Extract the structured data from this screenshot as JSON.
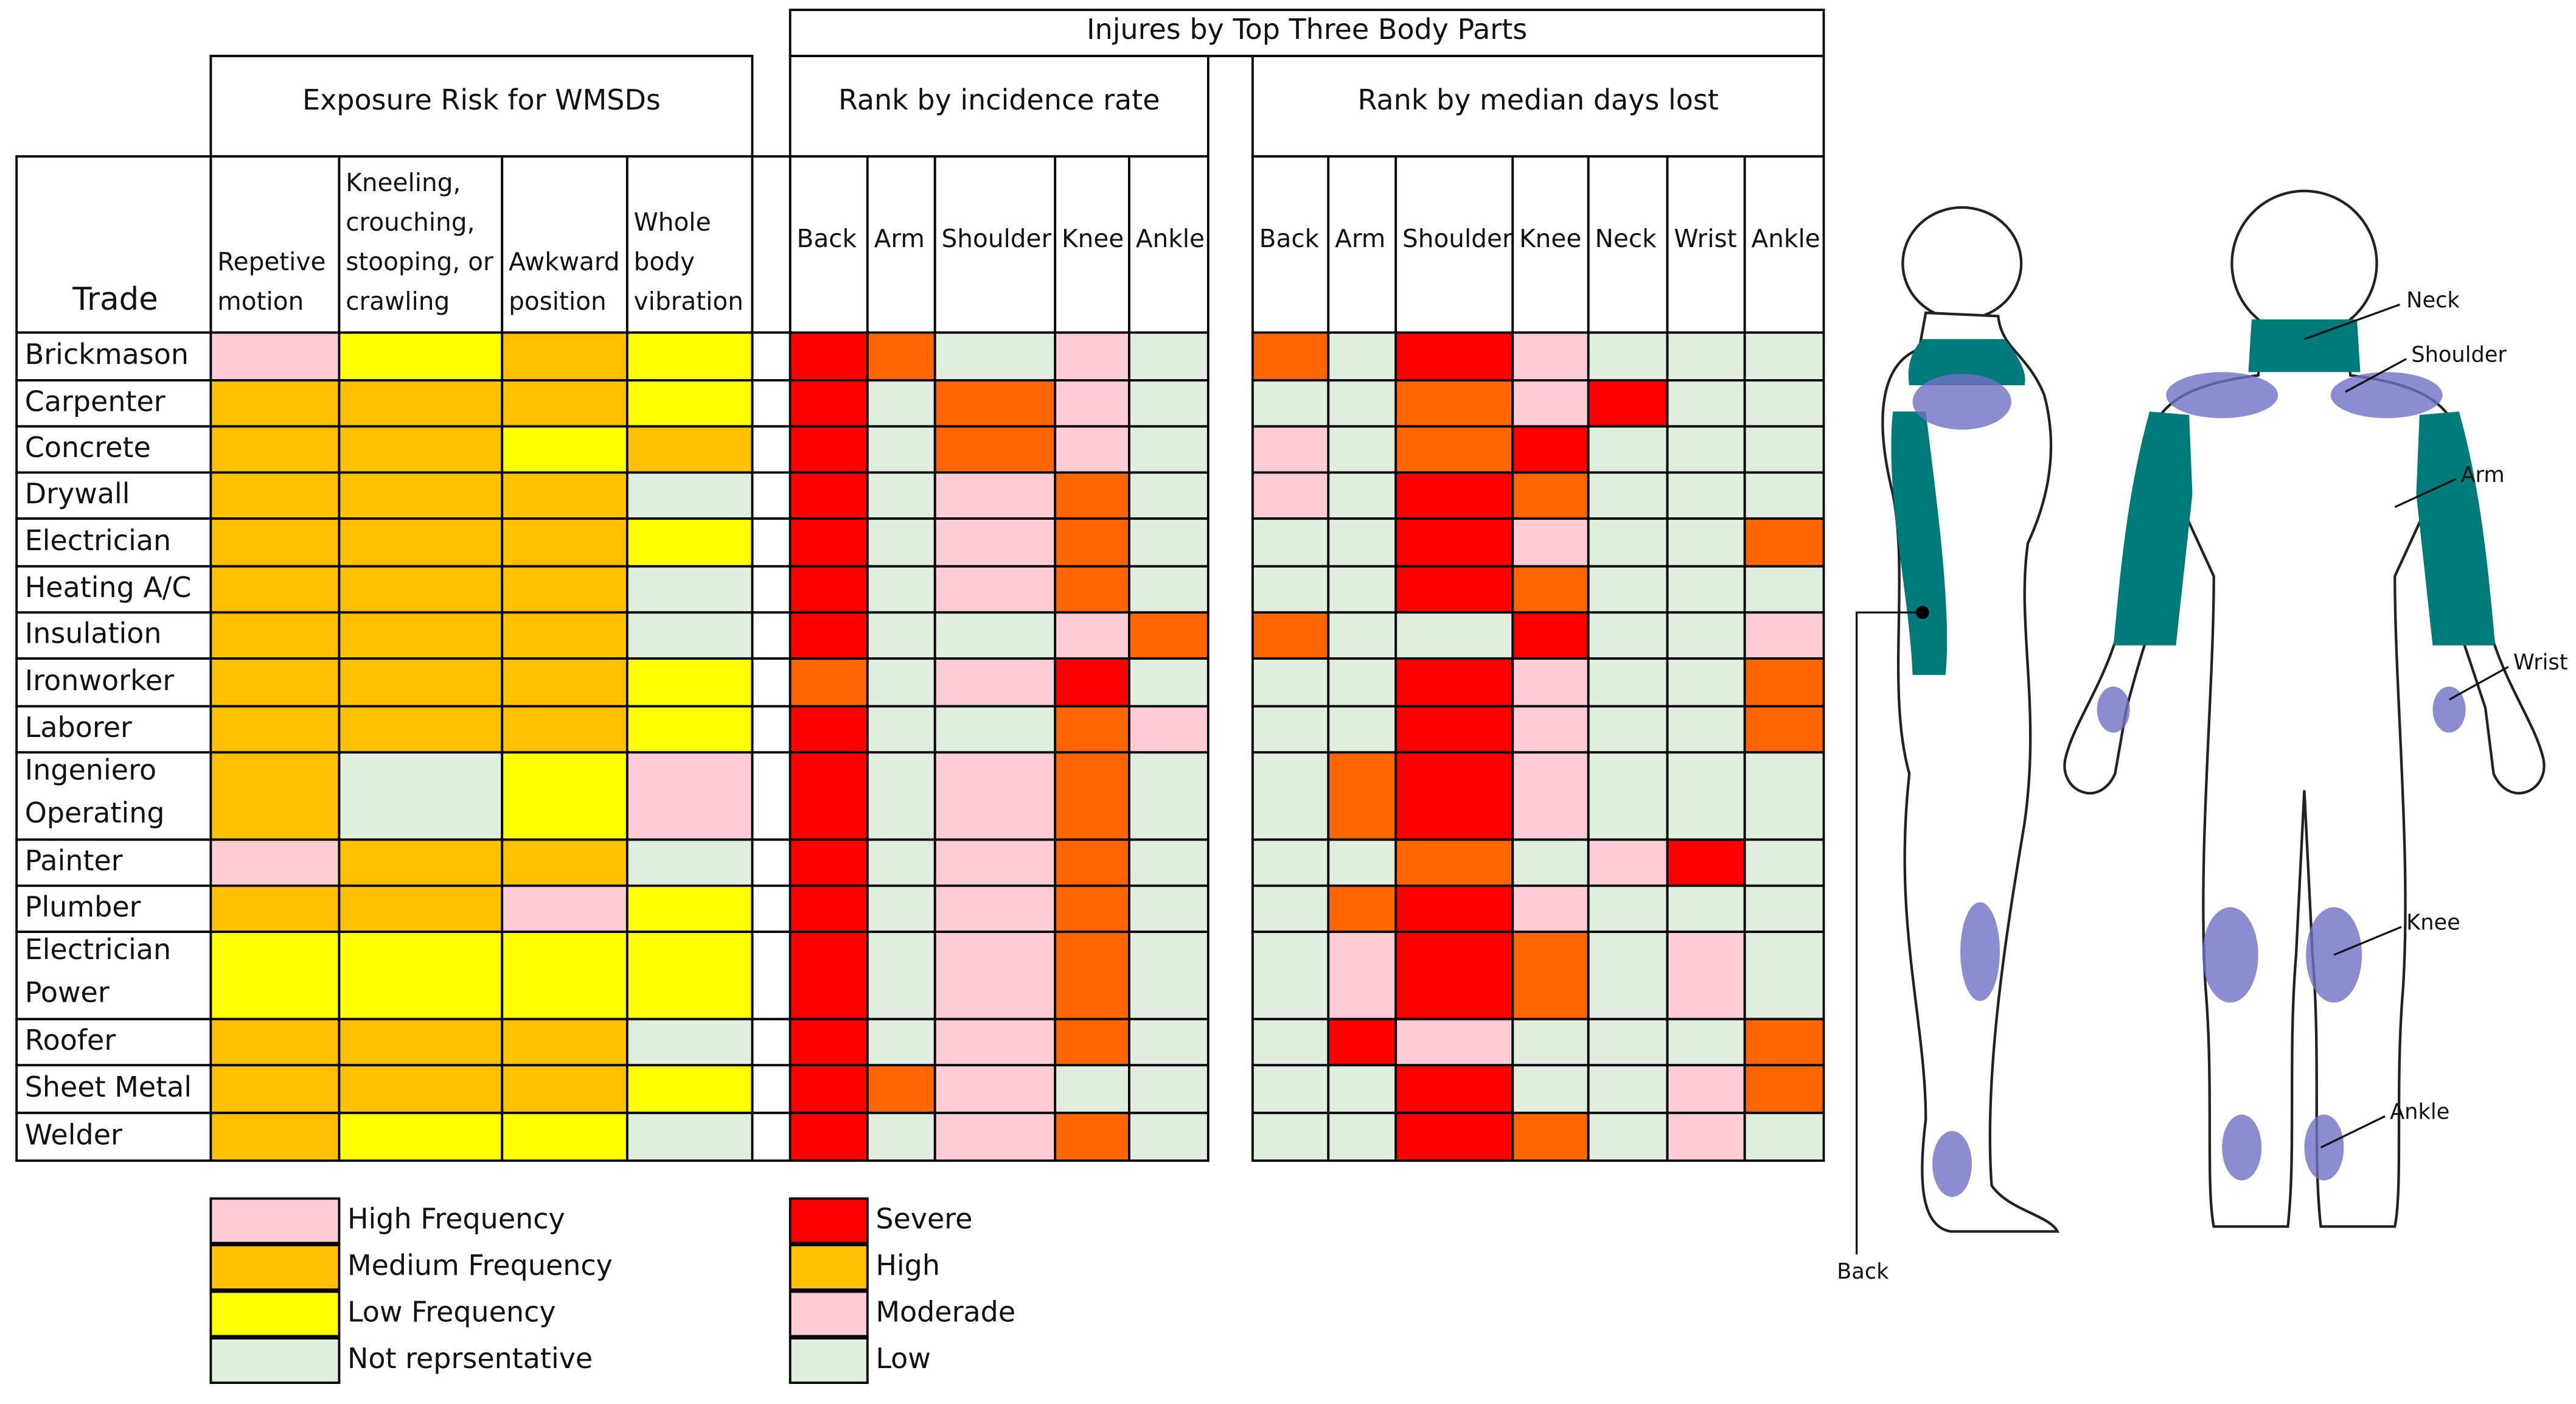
{
  "header": {
    "title": "Injures by Top Three Body Parts"
  },
  "table": {
    "trade_header": "Trade",
    "groups": [
      {
        "title": "Exposure Risk for WMSDs",
        "legend": 0,
        "columns": [
          [
            "Repetive",
            "motion"
          ],
          [
            "Kneeling,",
            "crouching,",
            "stooping, or",
            "crawling"
          ],
          [
            "Awkward",
            "position"
          ],
          [
            "Whole",
            "body",
            "vibration"
          ]
        ]
      },
      {
        "title": "Rank by incidence rate",
        "legend": 1,
        "columns": [
          [
            "Back"
          ],
          [
            "Arm"
          ],
          [
            "Shoulder"
          ],
          [
            "Knee"
          ],
          [
            "Ankle"
          ]
        ]
      },
      {
        "title": "Rank by median days lost",
        "legend": 1,
        "columns": [
          [
            "Back"
          ],
          [
            "Arm"
          ],
          [
            "Shoulder"
          ],
          [
            "Knee"
          ],
          [
            "Neck"
          ],
          [
            "Wrist"
          ],
          [
            "Ankle"
          ]
        ]
      }
    ],
    "rows": [
      {
        "trade": [
          "Brickmason"
        ],
        "cells": [
          [
            "High Frequency",
            "Low Frequency",
            "Medium Frequency",
            "Low Frequency"
          ],
          [
            "Severe",
            "High",
            "Low",
            "Moderade",
            "Low"
          ],
          [
            "High",
            "Low",
            "Severe",
            "Moderade",
            "Low",
            "Low",
            "Low"
          ]
        ]
      },
      {
        "trade": [
          "Carpenter"
        ],
        "cells": [
          [
            "Medium Frequency",
            "Medium Frequency",
            "Medium Frequency",
            "Low Frequency"
          ],
          [
            "Severe",
            "Low",
            "High",
            "Moderade",
            "Low"
          ],
          [
            "Low",
            "Low",
            "High",
            "Moderade",
            "Severe",
            "Low",
            "Low"
          ]
        ]
      },
      {
        "trade": [
          "Concrete"
        ],
        "cells": [
          [
            "Medium Frequency",
            "Medium Frequency",
            "Low Frequency",
            "Medium Frequency"
          ],
          [
            "Severe",
            "Low",
            "High",
            "Moderade",
            "Low"
          ],
          [
            "Moderade",
            "Low",
            "High",
            "Severe",
            "Low",
            "Low",
            "Low"
          ]
        ]
      },
      {
        "trade": [
          "Drywall"
        ],
        "cells": [
          [
            "Medium Frequency",
            "Medium Frequency",
            "Medium Frequency",
            "Not reprsentative"
          ],
          [
            "Severe",
            "Low",
            "Moderade",
            "High",
            "Low"
          ],
          [
            "Moderade",
            "Low",
            "Severe",
            "High",
            "Low",
            "Low",
            "Low"
          ]
        ]
      },
      {
        "trade": [
          "Electrician"
        ],
        "cells": [
          [
            "Medium Frequency",
            "Medium Frequency",
            "Medium Frequency",
            "Low Frequency"
          ],
          [
            "Severe",
            "Low",
            "Moderade",
            "High",
            "Low"
          ],
          [
            "Low",
            "Low",
            "Severe",
            "Moderade",
            "Low",
            "Low",
            "High"
          ]
        ]
      },
      {
        "trade": [
          "Heating A/C"
        ],
        "cells": [
          [
            "Medium Frequency",
            "Medium Frequency",
            "Medium Frequency",
            "Not reprsentative"
          ],
          [
            "Severe",
            "Low",
            "Moderade",
            "High",
            "Low"
          ],
          [
            "Low",
            "Low",
            "Severe",
            "High",
            "Low",
            "Low",
            "Low"
          ]
        ]
      },
      {
        "trade": [
          "Insulation"
        ],
        "cells": [
          [
            "Medium Frequency",
            "Medium Frequency",
            "Medium Frequency",
            "Not reprsentative"
          ],
          [
            "Severe",
            "Low",
            "Low",
            "Moderade",
            "High"
          ],
          [
            "High",
            "Low",
            "Low",
            "Severe",
            "Low",
            "Low",
            "Moderade"
          ]
        ]
      },
      {
        "trade": [
          "Ironworker"
        ],
        "cells": [
          [
            "Medium Frequency",
            "Medium Frequency",
            "Medium Frequency",
            "Low Frequency"
          ],
          [
            "High",
            "Low",
            "Moderade",
            "Severe",
            "Low"
          ],
          [
            "Low",
            "Low",
            "Severe",
            "Moderade",
            "Low",
            "Low",
            "High"
          ]
        ]
      },
      {
        "trade": [
          "Laborer"
        ],
        "cells": [
          [
            "Medium Frequency",
            "Medium Frequency",
            "Medium Frequency",
            "Low Frequency"
          ],
          [
            "Severe",
            "Low",
            "Low",
            "High",
            "Moderade"
          ],
          [
            "Low",
            "Low",
            "Severe",
            "Moderade",
            "Low",
            "Low",
            "High"
          ]
        ]
      },
      {
        "trade": [
          "Ingeniero",
          "Operating"
        ],
        "cells": [
          [
            "Medium Frequency",
            "Not reprsentative",
            "Low Frequency",
            "High Frequency"
          ],
          [
            "Severe",
            "Low",
            "Moderade",
            "High",
            "Low"
          ],
          [
            "Low",
            "High",
            "Severe",
            "Moderade",
            "Low",
            "Low",
            "Low"
          ]
        ]
      },
      {
        "trade": [
          "Painter"
        ],
        "cells": [
          [
            "High Frequency",
            "Medium Frequency",
            "Medium Frequency",
            "Not reprsentative"
          ],
          [
            "Severe",
            "Low",
            "Moderade",
            "High",
            "Low"
          ],
          [
            "Low",
            "Low",
            "High",
            "Low",
            "Moderade",
            "Severe",
            "Low"
          ]
        ]
      },
      {
        "trade": [
          "Plumber"
        ],
        "cells": [
          [
            "Medium Frequency",
            "Medium Frequency",
            "High Frequency",
            "Low Frequency"
          ],
          [
            "Severe",
            "Low",
            "Moderade",
            "High",
            "Low"
          ],
          [
            "Low",
            "High",
            "Severe",
            "Moderade",
            "Low",
            "Low",
            "Low"
          ]
        ]
      },
      {
        "trade": [
          "Electrician",
          "Power"
        ],
        "cells": [
          [
            "Low Frequency",
            "Low Frequency",
            "Low Frequency",
            "Low Frequency"
          ],
          [
            "Severe",
            "Low",
            "Moderade",
            "High",
            "Low"
          ],
          [
            "Low",
            "Moderade",
            "Severe",
            "High",
            "Low",
            "Moderade",
            "Low"
          ]
        ]
      },
      {
        "trade": [
          "Roofer"
        ],
        "cells": [
          [
            "Medium Frequency",
            "Medium Frequency",
            "Medium Frequency",
            "Not reprsentative"
          ],
          [
            "Severe",
            "Low",
            "Moderade",
            "High",
            "Low"
          ],
          [
            "Low",
            "Severe",
            "Moderade",
            "Low",
            "Low",
            "Low",
            "High"
          ]
        ]
      },
      {
        "trade": [
          "Sheet Metal"
        ],
        "cells": [
          [
            "Medium Frequency",
            "Medium Frequency",
            "Medium Frequency",
            "Low Frequency"
          ],
          [
            "Severe",
            "High",
            "Moderade",
            "Low",
            "Low"
          ],
          [
            "Low",
            "Low",
            "Severe",
            "Low",
            "Low",
            "Moderade",
            "High"
          ]
        ]
      },
      {
        "trade": [
          "Welder"
        ],
        "cells": [
          [
            "Medium Frequency",
            "Low Frequency",
            "Low Frequency",
            "Not reprsentative"
          ],
          [
            "Severe",
            "Low",
            "Moderade",
            "High",
            "Low"
          ],
          [
            "Low",
            "Low",
            "Severe",
            "High",
            "Low",
            "Moderade",
            "Low"
          ]
        ]
      }
    ]
  },
  "legends": [
    {
      "items": [
        {
          "label": "High Frequency",
          "color": "#ffccd5"
        },
        {
          "label": "Medium Frequency",
          "color": "#ffc000"
        },
        {
          "label": "Low Frequency",
          "color": "#ffff00"
        },
        {
          "label": "Not reprsentative",
          "color": "#dfeedd"
        }
      ]
    },
    {
      "items": [
        {
          "label": "Severe",
          "color": "#ff0000"
        },
        {
          "label": "High",
          "color": "#ff6600",
          "swatch_color": "#ffc000"
        },
        {
          "label": "Moderade",
          "color": "#ffccd5"
        },
        {
          "label": "Low",
          "color": "#dfeedd"
        }
      ]
    }
  ],
  "body_diagram": {
    "labels": [
      "Neck",
      "Shoulder",
      "Arm",
      "Wrist",
      "Knee",
      "Ankle",
      "Back"
    ]
  }
}
